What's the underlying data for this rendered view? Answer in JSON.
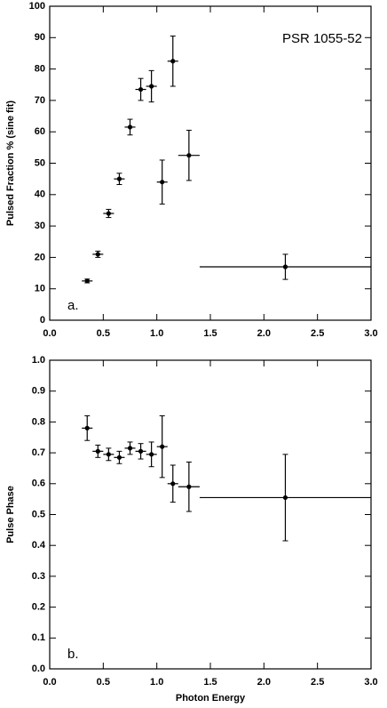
{
  "chart_data": [
    {
      "type": "scatter",
      "ylabel": "Pulsed Fraction % (sine fit)",
      "annotation": "PSR 1055-52",
      "panel_label": "a.",
      "x": [
        0.35,
        0.45,
        0.55,
        0.65,
        0.75,
        0.85,
        0.95,
        1.05,
        1.15,
        1.3,
        2.2
      ],
      "xerr": [
        0.05,
        0.05,
        0.05,
        0.05,
        0.05,
        0.05,
        0.05,
        0.05,
        0.05,
        0.1,
        0.8
      ],
      "values": [
        12.5,
        21,
        34,
        45,
        61.5,
        73.5,
        74.5,
        44,
        82.5,
        52.5,
        17
      ],
      "yerr": [
        0.6,
        1,
        1.3,
        1.8,
        2.5,
        3.5,
        5,
        7,
        8,
        8,
        4
      ],
      "color": "#000000",
      "xlim": [
        0,
        3
      ],
      "ylim": [
        0,
        100
      ],
      "xticks": [
        {
          "value": 0,
          "label": "0.0"
        },
        {
          "value": 0.5,
          "label": "0.5"
        },
        {
          "value": 1,
          "label": "1.0"
        },
        {
          "value": 1.5,
          "label": "1.5"
        },
        {
          "value": 2,
          "label": "2.0"
        },
        {
          "value": 2.5,
          "label": "2.5"
        },
        {
          "value": 3,
          "label": "3.0"
        }
      ],
      "yticks": [
        0,
        10,
        20,
        30,
        40,
        50,
        60,
        70,
        80,
        90,
        100
      ]
    },
    {
      "type": "scatter",
      "ylabel": "Pulse Phase",
      "xlabel": "Photon Energy",
      "panel_label": "b.",
      "x": [
        0.35,
        0.45,
        0.55,
        0.65,
        0.75,
        0.85,
        0.95,
        1.05,
        1.15,
        1.3,
        2.2
      ],
      "xerr": [
        0.05,
        0.05,
        0.05,
        0.05,
        0.05,
        0.05,
        0.05,
        0.05,
        0.05,
        0.1,
        0.8
      ],
      "values": [
        0.78,
        0.705,
        0.695,
        0.685,
        0.715,
        0.705,
        0.695,
        0.72,
        0.6,
        0.59,
        0.555
      ],
      "yerr": [
        0.04,
        0.02,
        0.02,
        0.02,
        0.02,
        0.025,
        0.04,
        0.1,
        0.06,
        0.08,
        0.14
      ],
      "color": "#000000",
      "xlim": [
        0,
        3
      ],
      "ylim": [
        0,
        1
      ],
      "xticks": [
        {
          "value": 0,
          "label": "0.0"
        },
        {
          "value": 0.5,
          "label": "0.5"
        },
        {
          "value": 1,
          "label": "1.0"
        },
        {
          "value": 1.5,
          "label": "1.5"
        },
        {
          "value": 2,
          "label": "2.0"
        },
        {
          "value": 2.5,
          "label": "2.5"
        },
        {
          "value": 3,
          "label": "3.0"
        }
      ],
      "yticks": [
        {
          "value": 0,
          "label": "0.0"
        },
        0.1,
        0.2,
        0.3,
        0.4,
        0.5,
        0.6,
        0.7,
        0.8,
        0.9,
        {
          "value": 1,
          "label": "1.0"
        }
      ]
    }
  ]
}
